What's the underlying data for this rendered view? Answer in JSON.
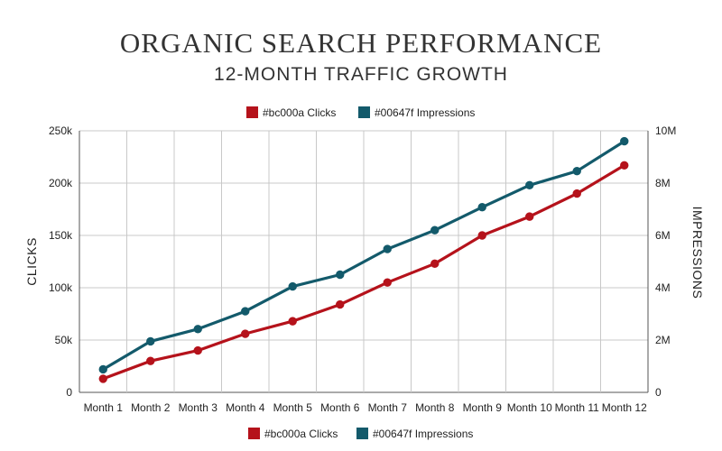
{
  "chart_data": {
    "type": "line",
    "title": "ORGANIC SEARCH PERFORMANCE",
    "subtitle": "12-MONTH TRAFFIC GROWTH",
    "categories": [
      "Month 1",
      "Month 2",
      "Month 3",
      "Month 4",
      "Month 5",
      "Month 6",
      "Month 7",
      "Month 8",
      "Month 9",
      "Month 10",
      "Month 11",
      "Month 12"
    ],
    "series": [
      {
        "name": "#bc000a Clicks",
        "color": "#b5121b",
        "axis": "left",
        "values": [
          13000,
          30000,
          40000,
          56000,
          68000,
          84000,
          105000,
          123000,
          150000,
          168000,
          190000,
          217000
        ]
      },
      {
        "name": "#00647f Impressions",
        "color": "#135a6b",
        "axis": "right",
        "values": [
          880000,
          1950000,
          2420000,
          3100000,
          4050000,
          4500000,
          5480000,
          6200000,
          7080000,
          7920000,
          8460000,
          9600000
        ]
      }
    ],
    "y_left": {
      "label": "CLICKS",
      "range": [
        0,
        250000
      ],
      "ticks": [
        0,
        50000,
        100000,
        150000,
        200000,
        250000
      ],
      "tick_labels": [
        "0",
        "50k",
        "100k",
        "150k",
        "200k",
        "250k"
      ]
    },
    "y_right": {
      "label": "IMPRESSIONS",
      "range": [
        0,
        10000000
      ],
      "ticks": [
        0,
        2000000,
        4000000,
        6000000,
        8000000,
        10000000
      ],
      "tick_labels": [
        "0",
        "2M",
        "4M",
        "6M",
        "8M",
        "10M"
      ]
    },
    "grid": true,
    "legend_positions": [
      "top-center",
      "bottom-center"
    ]
  }
}
